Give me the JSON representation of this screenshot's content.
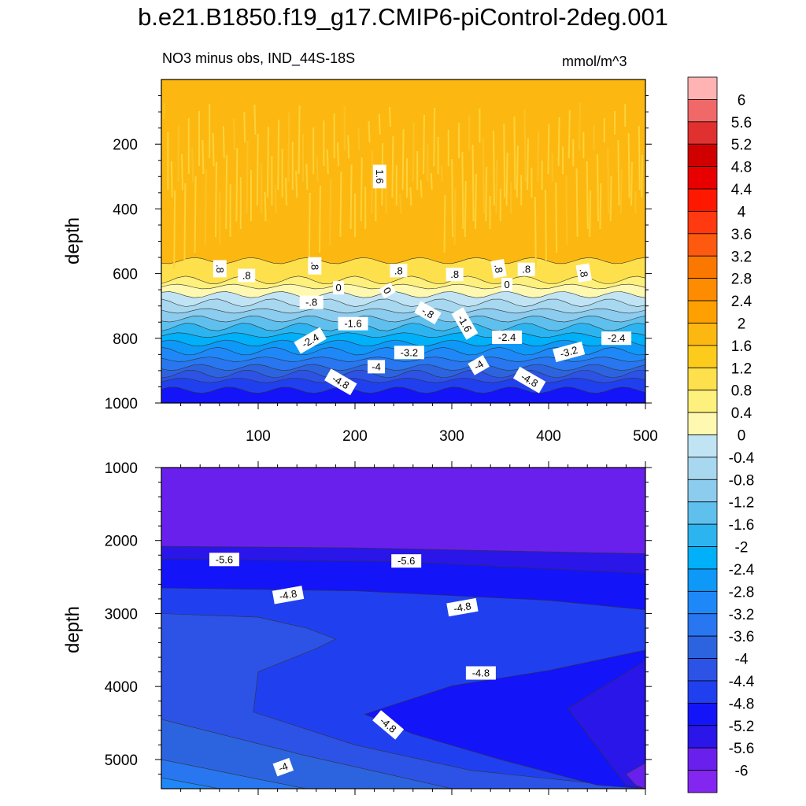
{
  "title": "b.e21.B1850.f19_g17.CMIP6-piControl-2deg.001",
  "subtitle_left": "NO3 minus obs, IND_44S-18S",
  "subtitle_right": "mmol/m^3",
  "chart_data": [
    {
      "type": "contour",
      "panel": "upper",
      "ylabel": "depth",
      "xlabel": "",
      "xlim": [
        0,
        500
      ],
      "ylim": [
        1000,
        0
      ],
      "x_ticks": [
        100,
        200,
        300,
        400,
        500
      ],
      "y_ticks": [
        200,
        400,
        600,
        800,
        1000
      ],
      "bands": [
        {
          "value": 1.6,
          "depth_top": 0,
          "depth_bottom": 560
        },
        {
          "value": 0.8,
          "depth_top": 560,
          "depth_bottom": 620
        },
        {
          "value": 0.4,
          "depth_top": 620,
          "depth_bottom": 640
        },
        {
          "value": 0.0,
          "depth_top": 640,
          "depth_bottom": 665
        },
        {
          "value": -0.4,
          "depth_top": 665,
          "depth_bottom": 690
        },
        {
          "value": -0.8,
          "depth_top": 690,
          "depth_bottom": 715
        },
        {
          "value": -1.2,
          "depth_top": 715,
          "depth_bottom": 740
        },
        {
          "value": -1.6,
          "depth_top": 740,
          "depth_bottom": 765
        },
        {
          "value": -2.0,
          "depth_top": 765,
          "depth_bottom": 790
        },
        {
          "value": -2.4,
          "depth_top": 790,
          "depth_bottom": 815
        },
        {
          "value": -2.8,
          "depth_top": 815,
          "depth_bottom": 840
        },
        {
          "value": -3.2,
          "depth_top": 840,
          "depth_bottom": 865
        },
        {
          "value": -3.6,
          "depth_top": 865,
          "depth_bottom": 890
        },
        {
          "value": -4.0,
          "depth_top": 890,
          "depth_bottom": 910
        },
        {
          "value": -4.4,
          "depth_top": 910,
          "depth_bottom": 930
        },
        {
          "value": -4.8,
          "depth_top": 930,
          "depth_bottom": 960
        },
        {
          "value": -5.2,
          "depth_top": 960,
          "depth_bottom": 1000
        }
      ],
      "contour_labels": [
        {
          "text": "1.6",
          "x": 225,
          "depth": 300,
          "angle": 90
        },
        {
          "text": ".8",
          "x": 60,
          "depth": 585,
          "angle": 90
        },
        {
          "text": ".8",
          "x": 88,
          "depth": 607,
          "angle": 0
        },
        {
          "text": ".8",
          "x": 158,
          "depth": 576,
          "angle": 90
        },
        {
          "text": ".8",
          "x": 245,
          "depth": 592,
          "angle": 0
        },
        {
          "text": ".8",
          "x": 303,
          "depth": 604,
          "angle": 0
        },
        {
          "text": ".8",
          "x": 348,
          "depth": 585,
          "angle": 80
        },
        {
          "text": ".8",
          "x": 377,
          "depth": 588,
          "angle": 0
        },
        {
          "text": ".8",
          "x": 436,
          "depth": 598,
          "angle": 80
        },
        {
          "text": "0",
          "x": 183,
          "depth": 645,
          "angle": 0
        },
        {
          "text": "0",
          "x": 233,
          "depth": 653,
          "angle": 60
        },
        {
          "text": "0",
          "x": 357,
          "depth": 635,
          "angle": 0
        },
        {
          "text": "-.8",
          "x": 155,
          "depth": 690,
          "angle": 0
        },
        {
          "text": "-.8",
          "x": 275,
          "depth": 722,
          "angle": 30
        },
        {
          "text": "-1.6",
          "x": 198,
          "depth": 756,
          "angle": 0
        },
        {
          "text": "-1.6",
          "x": 313,
          "depth": 755,
          "angle": 60
        },
        {
          "text": "-2.4",
          "x": 154,
          "depth": 808,
          "angle": -30
        },
        {
          "text": "-2.4",
          "x": 357,
          "depth": 798,
          "angle": 0
        },
        {
          "text": "-2.4",
          "x": 470,
          "depth": 801,
          "angle": 0
        },
        {
          "text": "-3.2",
          "x": 256,
          "depth": 845,
          "angle": 0
        },
        {
          "text": "-3.2",
          "x": 421,
          "depth": 843,
          "angle": -15
        },
        {
          "text": "-4",
          "x": 222,
          "depth": 889,
          "angle": 0
        },
        {
          "text": "-4",
          "x": 328,
          "depth": 884,
          "angle": -30
        },
        {
          "text": "-4.8",
          "x": 185,
          "depth": 936,
          "angle": 30
        },
        {
          "text": "-4.8",
          "x": 380,
          "depth": 930,
          "angle": 30
        }
      ]
    },
    {
      "type": "contour",
      "panel": "lower",
      "ylabel": "depth",
      "xlabel": "",
      "xlim": [
        0,
        500
      ],
      "ylim": [
        5400,
        1000
      ],
      "y_ticks": [
        1000,
        2000,
        3000,
        4000,
        5000
      ],
      "regions": [
        {
          "value": -6.0,
          "description_level": "below -5.6"
        },
        {
          "value": -5.6,
          "description_level": "-5.6 to -5.2"
        },
        {
          "value": -5.2,
          "description_level": "-5.2 to -4.8"
        },
        {
          "value": -4.8,
          "description_level": "-4.8 to -4.4"
        },
        {
          "value": -4.4,
          "description_level": "-4.4 to -4"
        },
        {
          "value": -4.0,
          "description_level": "-4 to -3.6"
        },
        {
          "value": -3.6,
          "description_level": "-3.6 to -3.2"
        },
        {
          "value": -3.2,
          "description_level": "-3.2 to -2.8"
        }
      ],
      "contour_labels": [
        {
          "text": "-5.6",
          "x": 65,
          "depth": 2265,
          "angle": 0
        },
        {
          "text": "-5.6",
          "x": 253,
          "depth": 2285,
          "angle": 0
        },
        {
          "text": "-4.8",
          "x": 131,
          "depth": 2750,
          "angle": -10
        },
        {
          "text": "-4.8",
          "x": 311,
          "depth": 2920,
          "angle": -10
        },
        {
          "text": "-4.8",
          "x": 330,
          "depth": 3820,
          "angle": 0
        },
        {
          "text": "-4.8",
          "x": 234,
          "depth": 4530,
          "angle": 40
        },
        {
          "text": "-4",
          "x": 126,
          "depth": 5110,
          "angle": -20
        }
      ]
    }
  ],
  "colorbar": {
    "labels": [
      "6",
      "5.6",
      "5.2",
      "4.8",
      "4.4",
      "4",
      "3.6",
      "3.2",
      "2.8",
      "2.4",
      "2",
      "1.6",
      "1.2",
      "0.8",
      "0.4",
      "0",
      "-0.4",
      "-0.8",
      "-1.2",
      "-1.6",
      "-2",
      "-2.4",
      "-2.8",
      "-3.2",
      "-3.6",
      "-4",
      "-4.4",
      "-4.8",
      "-5.2",
      "-5.6",
      "-6"
    ],
    "colors": [
      "#ffb3b3",
      "#f06868",
      "#e03030",
      "#d00000",
      "#e80000",
      "#ff1800",
      "#ff3a10",
      "#fd5a10",
      "#fb7800",
      "#fd8c00",
      "#fda000",
      "#fcb810",
      "#fdcb1c",
      "#fde04c",
      "#fdf07c",
      "#fff8b0",
      "#c0e4f4",
      "#a8d8f0",
      "#8cccee",
      "#5fc0ee",
      "#2cb4f0",
      "#00b0f8",
      "#0e98f8",
      "#1e88f8",
      "#2876f0",
      "#2c64e0",
      "#2d52e6",
      "#2040f0",
      "#1414f8",
      "#2a16e8",
      "#6a20ec",
      "#8226f0"
    ]
  }
}
